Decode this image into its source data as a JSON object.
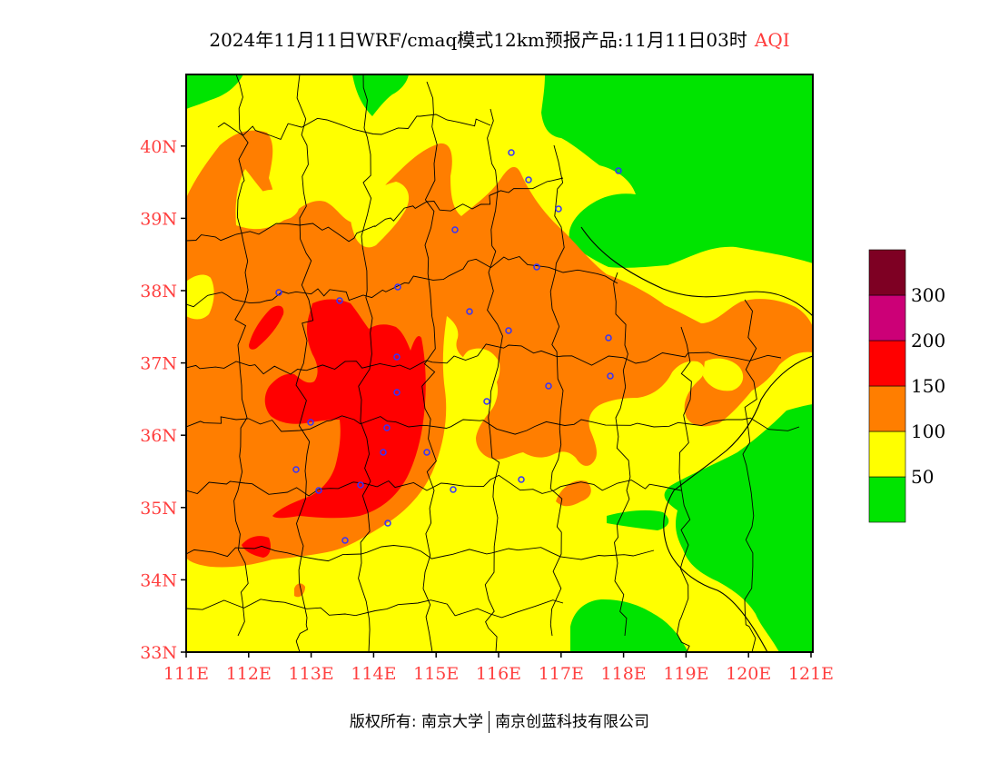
{
  "title": {
    "main": "2024年11月11日WRF/cmaq模式12km预报产品:11月11日03时",
    "variable": "AQI"
  },
  "axes": {
    "lat_labels": [
      "33N",
      "34N",
      "35N",
      "36N",
      "37N",
      "38N",
      "39N",
      "40N"
    ],
    "lon_labels": [
      "111E",
      "112E",
      "113E",
      "114E",
      "115E",
      "116E",
      "117E",
      "118E",
      "119E",
      "120E",
      "121E"
    ],
    "label_color": "#ff4040"
  },
  "legend": {
    "labels": [
      "50",
      "100",
      "150",
      "200",
      "300"
    ],
    "bins": [
      {
        "color": "#00e400"
      },
      {
        "color": "#ffff00"
      },
      {
        "color": "#ff7e00"
      },
      {
        "color": "#ff0000"
      },
      {
        "color": "#cc0077"
      },
      {
        "color": "#7e0023"
      }
    ]
  },
  "colors": {
    "good": "#00e400",
    "moderate": "#ffff00",
    "sensitive": "#ff7e00",
    "unhealthy": "#ff0000",
    "very_unhealthy": "#cc0077",
    "hazardous": "#7e0023",
    "station_marker": "#3333ff"
  },
  "copyright": {
    "left": "版权所有: 南京大学",
    "right": "南京创蓝科技有限公司"
  }
}
